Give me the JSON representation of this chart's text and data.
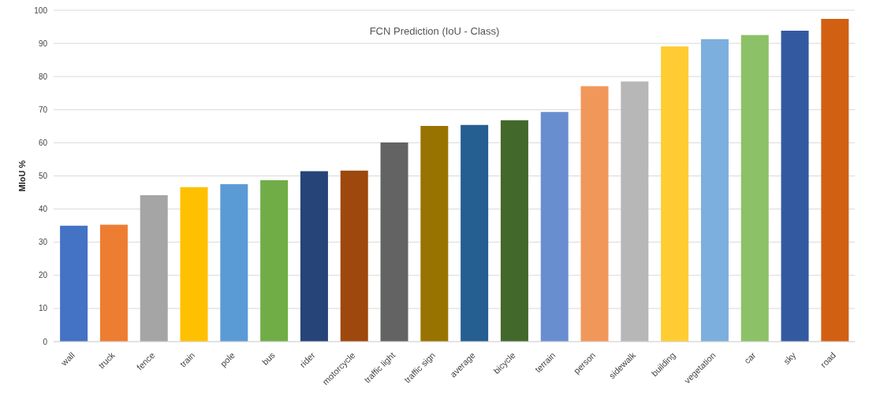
{
  "chart_data": {
    "type": "bar",
    "title": "FCN Prediction (IoU - Class)",
    "ylabel": "MIoU %",
    "categories": [
      "wall",
      "truck",
      "fence",
      "train",
      "pole",
      "bus",
      "rider",
      "motorcycle",
      "traffic light",
      "traffic sign",
      "average",
      "bicycle",
      "terrain",
      "person",
      "sidewalk",
      "building",
      "vegetation",
      "car",
      "sky",
      "road"
    ],
    "values": [
      35,
      35.3,
      44.2,
      46.6,
      47.5,
      48.7,
      51.4,
      51.6,
      60.1,
      65.1,
      65.4,
      66.8,
      69.3,
      77.1,
      78.5,
      89.1,
      91.3,
      92.5,
      93.8,
      97.4
    ],
    "colors": [
      "#4472c4",
      "#ed7d31",
      "#a5a5a5",
      "#ffc000",
      "#5b9bd5",
      "#70ad47",
      "#264478",
      "#9e480e",
      "#636363",
      "#997300",
      "#255e91",
      "#43682b",
      "#698ed0",
      "#f1975a",
      "#b7b7b7",
      "#ffcd33",
      "#7cafdd",
      "#8cc168",
      "#335aa1",
      "#d26012"
    ],
    "ylim": [
      0,
      100
    ],
    "yticks": [
      0,
      10,
      20,
      30,
      40,
      50,
      60,
      70,
      80,
      90,
      100
    ],
    "grid": "y"
  }
}
